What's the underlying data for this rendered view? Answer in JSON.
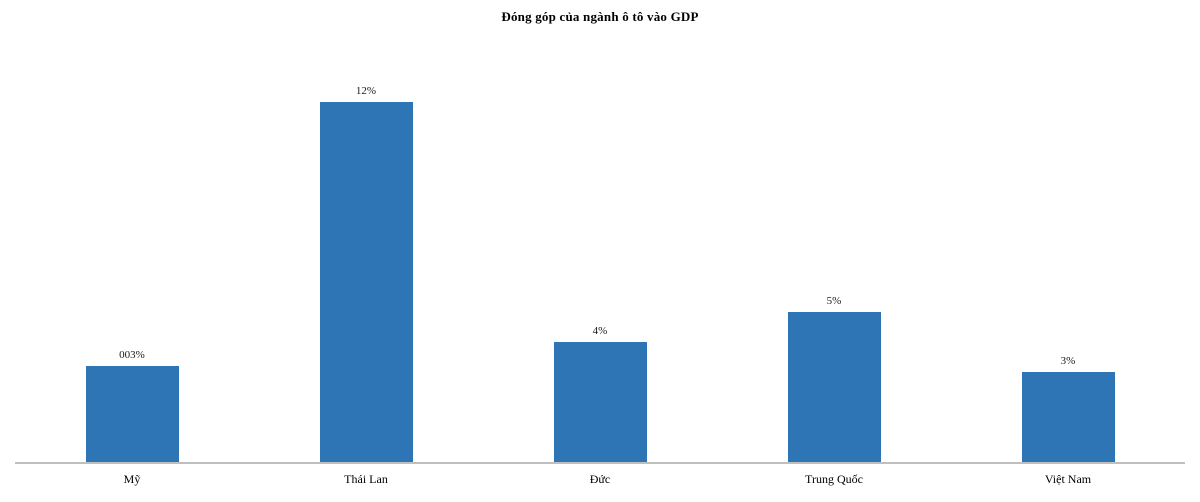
{
  "chart_data": {
    "type": "bar",
    "title": "Đóng góp của ngành ô tô vào GDP",
    "categories": [
      "Mỹ",
      "Thái Lan",
      "Đức",
      "Trung Quốc",
      "Việt Nam"
    ],
    "values": [
      3.2,
      12,
      4,
      5,
      3
    ],
    "value_labels": [
      "003%",
      "12%",
      "4%",
      "5%",
      "3%"
    ],
    "xlabel": "",
    "ylabel": "",
    "ylim": [
      0,
      14
    ],
    "grid": false,
    "legend": "none",
    "y_axis_visible": false,
    "bar_color": "#2E75B6",
    "axis_line_color": "#BFBFBF",
    "text_color": "#000000",
    "background_color": "#FFFFFF"
  }
}
